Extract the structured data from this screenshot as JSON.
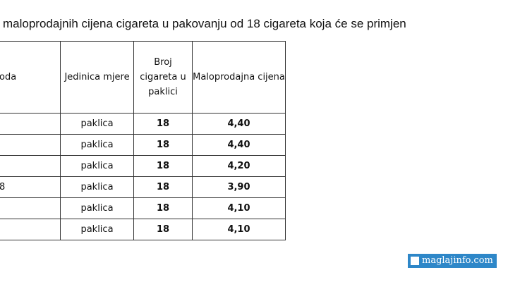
{
  "title": "maloprodajnih cijena cigareta u pakovanju od 18 cigareta koja će se primjen",
  "table": {
    "headers": [
      "oda",
      "Jedinica mjere",
      "Broj cigareta u paklici",
      "Maloprodajna cijena"
    ],
    "rows": [
      {
        "name": "",
        "unit": "paklica",
        "count": "18",
        "price": "4,40"
      },
      {
        "name": "",
        "unit": "paklica",
        "count": "18",
        "price": "4,40"
      },
      {
        "name": "",
        "unit": "paklica",
        "count": "18",
        "price": "4,20"
      },
      {
        "name": "8",
        "unit": "paklica",
        "count": "18",
        "price": "3,90"
      },
      {
        "name": "",
        "unit": "paklica",
        "count": "18",
        "price": "4,10"
      },
      {
        "name": "",
        "unit": "paklica",
        "count": "18",
        "price": "4,10"
      }
    ]
  },
  "watermark": "maglajinfo.com"
}
